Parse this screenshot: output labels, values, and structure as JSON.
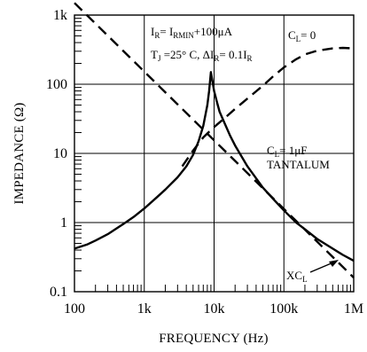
{
  "chart_data": {
    "type": "line",
    "xlabel": "FREQUENCY (Hz)",
    "ylabel": "IMPEDANCE (Ω)",
    "xscale": "log",
    "yscale": "log",
    "xlim": [
      100,
      1000000
    ],
    "ylim": [
      0.1,
      1000
    ],
    "grid": true,
    "x_ticks": [
      {
        "value": 100,
        "label": "100"
      },
      {
        "value": 1000,
        "label": "1k"
      },
      {
        "value": 10000,
        "label": "10k"
      },
      {
        "value": 100000,
        "label": "100k"
      },
      {
        "value": 1000000,
        "label": "1M"
      }
    ],
    "y_ticks": [
      {
        "value": 0.1,
        "label": "0.1"
      },
      {
        "value": 1,
        "label": "1"
      },
      {
        "value": 10,
        "label": "10"
      },
      {
        "value": 100,
        "label": "100"
      },
      {
        "value": 1000,
        "label": "1k"
      }
    ],
    "conditions": {
      "line1_parts": [
        {
          "text": "I",
          "sub": false
        },
        {
          "text": "R",
          "sub": true
        },
        {
          "text": "= I",
          "sub": false
        },
        {
          "text": "RMIN",
          "sub": true
        },
        {
          "text": "+100μA",
          "sub": false
        }
      ],
      "line2_parts": [
        {
          "text": "T",
          "sub": false
        },
        {
          "text": "J",
          "sub": true
        },
        {
          "text": " =25° C, ΔI",
          "sub": false
        },
        {
          "text": "R",
          "sub": true
        },
        {
          "text": "= 0.1I",
          "sub": false
        },
        {
          "text": "R",
          "sub": true
        }
      ]
    },
    "series": [
      {
        "name": "CL = 0",
        "style": "dashed",
        "label_parts": [
          {
            "text": "C",
            "sub": false
          },
          {
            "text": "L",
            "sub": true
          },
          {
            "text": "= 0",
            "sub": false
          }
        ],
        "x": [
          3500,
          5000,
          7000,
          10000,
          15000,
          20000,
          30000,
          50000,
          70000,
          100000,
          150000,
          200000,
          300000,
          500000,
          700000,
          1000000
        ],
        "y": [
          6.5,
          11,
          17,
          24,
          34,
          44,
          62,
          95,
          130,
          175,
          230,
          270,
          305,
          330,
          335,
          330
        ]
      },
      {
        "name": "CL = 1µF TANTALUM",
        "style": "solid",
        "label_parts": [
          {
            "text": "C",
            "sub": false
          },
          {
            "text": "L",
            "sub": true
          },
          {
            "text": "= 1μF",
            "sub": false
          }
        ],
        "label_line2": "TANTALUM",
        "x": [
          100,
          150,
          200,
          300,
          500,
          700,
          1000,
          1500,
          2000,
          3000,
          4000,
          5000,
          6000,
          7000,
          8000,
          8500,
          9000,
          9500,
          10000,
          11000,
          12000,
          14000,
          17000,
          20000,
          30000,
          50000,
          70000,
          100000,
          150000,
          200000,
          300000,
          500000,
          700000,
          1000000
        ],
        "y": [
          0.42,
          0.48,
          0.55,
          0.68,
          0.95,
          1.2,
          1.6,
          2.3,
          3.0,
          4.5,
          6.5,
          9.5,
          15,
          25,
          50,
          80,
          150,
          110,
          80,
          55,
          40,
          28,
          18,
          13,
          6.5,
          3.2,
          2.2,
          1.5,
          1.0,
          0.8,
          0.58,
          0.42,
          0.34,
          0.28
        ]
      },
      {
        "name": "XCL",
        "style": "dashed",
        "label_parts": [
          {
            "text": "XC",
            "sub": false
          },
          {
            "text": "L",
            "sub": true
          }
        ],
        "x": [
          100,
          1000000
        ],
        "y": [
          1500,
          0.16
        ]
      }
    ]
  }
}
